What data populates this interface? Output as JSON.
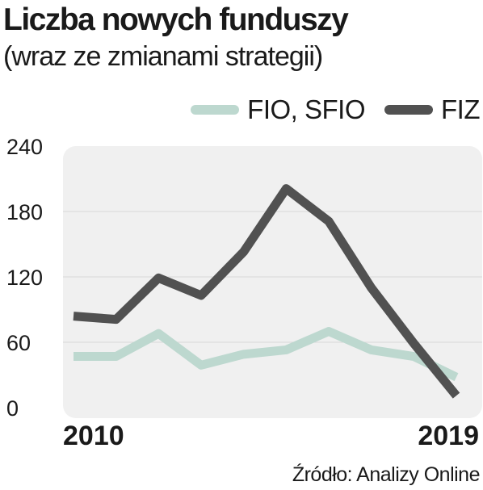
{
  "title": "Liczba nowych funduszy",
  "subtitle": "(wraz ze zmianami strategii)",
  "source": "Źródło: Analizy Online",
  "colors": {
    "fio_sfio": "#bdd8cf",
    "fiz": "#515151",
    "panel": "#f0f0f0",
    "grid": "#d9d9d9"
  },
  "chart_data": {
    "type": "line",
    "x": [
      2010,
      2011,
      2012,
      2013,
      2014,
      2015,
      2016,
      2017,
      2018,
      2019
    ],
    "x_tick_labels": [
      "2010",
      "2019"
    ],
    "y_tick_labels": [
      "0",
      "60",
      "120",
      "180",
      "240"
    ],
    "ylim": [
      0,
      240
    ],
    "yticks": [
      0,
      60,
      120,
      180,
      240
    ],
    "grid": true,
    "legend": "top-right",
    "series": [
      {
        "name": "FIO, SFIO",
        "values": [
          47,
          47,
          68,
          39,
          49,
          53,
          70,
          53,
          47,
          28
        ]
      },
      {
        "name": "FIZ",
        "values": [
          84,
          81,
          119,
          103,
          143,
          201,
          171,
          110,
          59,
          11
        ]
      }
    ]
  }
}
